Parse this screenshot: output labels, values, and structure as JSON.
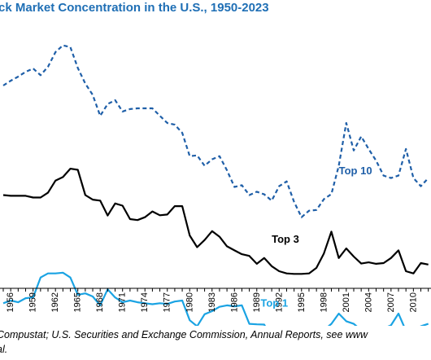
{
  "chart_data": {
    "type": "line",
    "title": "ck Market Concentration in the U.S., 1950-2023",
    "xlabel": "",
    "ylabel": "",
    "x_range": [
      1955,
      2012
    ],
    "y_range": [
      0,
      100
    ],
    "grid": false,
    "legend": "inline labels",
    "x_ticks": [
      1956,
      1959,
      1962,
      1965,
      1968,
      1971,
      1974,
      1977,
      1980,
      1983,
      1986,
      1989,
      1992,
      1995,
      1998,
      2001,
      2004,
      2007,
      2010
    ],
    "x_tick_labels": [
      "1956",
      "1959",
      "1962",
      "1965",
      "1968",
      "1971",
      "1974",
      "1977",
      "1980",
      "1983",
      "1986",
      "1989",
      "1992",
      "1995",
      "1998",
      "2001",
      "2004",
      "2007",
      "2010"
    ],
    "x": [
      1955,
      1956,
      1957,
      1958,
      1959,
      1960,
      1961,
      1962,
      1963,
      1964,
      1965,
      1966,
      1967,
      1968,
      1969,
      1970,
      1971,
      1972,
      1973,
      1974,
      1975,
      1976,
      1977,
      1978,
      1979,
      1980,
      1981,
      1982,
      1983,
      1984,
      1985,
      1986,
      1987,
      1988,
      1989,
      1990,
      1991,
      1992,
      1993,
      1994,
      1995,
      1996,
      1997,
      1998,
      1999,
      2000,
      2001,
      2002,
      2003,
      2004,
      2005,
      2006,
      2007,
      2008,
      2009,
      2010,
      2011,
      2012
    ],
    "series": [
      {
        "name": "Top 10",
        "style": "dashed",
        "color": "#1f5fa8",
        "values": [
          80.0,
          82.0,
          83.7,
          85.7,
          87.1,
          84.3,
          87.8,
          93.9,
          96.7,
          96.0,
          87.3,
          80.8,
          76.1,
          67.4,
          72.3,
          73.9,
          69.2,
          70.2,
          70.5,
          70.5,
          70.5,
          67.4,
          64.4,
          63.7,
          60.3,
          50.6,
          50.9,
          46.6,
          49.3,
          50.6,
          44.7,
          37.8,
          38.5,
          34.4,
          35.8,
          34.7,
          32.1,
          38.1,
          40.1,
          31.6,
          25.2,
          27.9,
          28.2,
          32.7,
          34.8,
          46.6,
          64.4,
          53.0,
          58.8,
          53.6,
          48.7,
          42.5,
          41.5,
          42.5,
          53.6,
          41.5,
          38.1,
          41.5
        ]
      },
      {
        "name": "Top 3",
        "style": "solid",
        "color": "#000000",
        "values": [
          34.4,
          34.1,
          34.1,
          34.1,
          33.4,
          33.4,
          35.4,
          40.4,
          41.9,
          45.4,
          44.9,
          34.4,
          32.5,
          32.1,
          25.9,
          30.9,
          30.0,
          24.4,
          24.0,
          25.2,
          27.6,
          26.0,
          26.3,
          29.8,
          29.8,
          17.6,
          12.7,
          15.7,
          19.4,
          17.1,
          13.1,
          11.4,
          9.8,
          9.1,
          5.8,
          8.2,
          4.8,
          2.7,
          1.8,
          1.6,
          1.6,
          1.8,
          4.1,
          10.1,
          19.2,
          8.2,
          12.2,
          8.8,
          5.9,
          6.4,
          5.8,
          6.1,
          8.2,
          11.4,
          2.7,
          1.8,
          6.1,
          5.5
        ]
      },
      {
        "name": "Top 1",
        "style": "solid",
        "color": "#1aa3e3",
        "values": [
          -10.6,
          -9.5,
          -10.2,
          -8.5,
          -8.2,
          0.1,
          1.8,
          1.8,
          2.1,
          0.1,
          -7.1,
          -6.5,
          -7.8,
          -11.5,
          -4.8,
          -8.2,
          -10.2,
          -9.5,
          -10.2,
          -10.6,
          -11.0,
          -10.6,
          -10.9,
          -9.9,
          -9.5,
          -17.7,
          -20.2,
          -15.2,
          -13.9,
          -12.1,
          -11.5,
          -11.9,
          -11.5,
          -19.2,
          -19.4,
          -19.5,
          -25.2,
          -23.8,
          -25.9,
          -26.1,
          -25.9,
          -25.5,
          -23.8,
          -21.8,
          -19.2,
          -14.9,
          -18.1,
          -19.2,
          -21.8,
          -21.1,
          -22.1,
          -21.1,
          -19.8,
          -14.9,
          -22.1,
          -22.1,
          -20.2,
          -19.2
        ]
      }
    ],
    "annotations": [
      {
        "text": "Top 10",
        "x": 2000,
        "y": 43,
        "color": "#1f5fa8"
      },
      {
        "text": "Top 3",
        "x": 1991,
        "y": 14.5,
        "color": "#000000"
      },
      {
        "text": "Top 1",
        "x": 1989.5,
        "y": -12,
        "color": "#1aa3e3"
      }
    ]
  },
  "source_lines": [
    "Compustat; U.S. Securities and Exchange Commission, Annual Reports, see www",
    "al."
  ]
}
